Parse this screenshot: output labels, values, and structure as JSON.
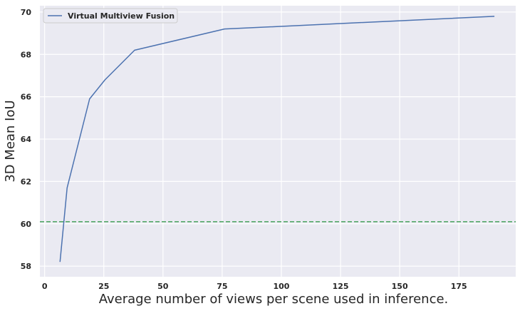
{
  "chart_data": {
    "type": "line",
    "title": "",
    "xlabel": "Average number of views per scene used in inference.",
    "ylabel": "3D Mean IoU",
    "xlim": [
      -2,
      199
    ],
    "ylim": [
      57.5,
      70.3
    ],
    "xticks": [
      0,
      25,
      50,
      75,
      100,
      125,
      150,
      175
    ],
    "yticks": [
      58,
      60,
      62,
      64,
      66,
      68,
      70
    ],
    "grid": true,
    "legend_position": "top-left",
    "background_color": "#eaeaf2",
    "series": [
      {
        "name": "Virtual Multiview Fusion",
        "color": "#4c72b0",
        "style": "solid",
        "x": [
          6.5,
          9.5,
          19,
          25.5,
          38,
          76,
          190
        ],
        "y": [
          58.2,
          61.7,
          65.9,
          66.8,
          68.2,
          69.2,
          69.8
        ]
      }
    ],
    "reference_lines": [
      {
        "orientation": "horizontal",
        "y": 60.1,
        "color": "#55a868",
        "style": "dashed"
      }
    ]
  }
}
